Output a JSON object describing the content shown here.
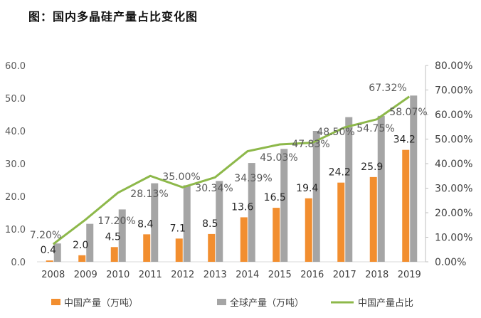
{
  "chart_data": {
    "type": "bar+line",
    "title": "图：国内多晶硅产量占比变化图",
    "categories": [
      "2008",
      "2009",
      "2010",
      "2011",
      "2012",
      "2013",
      "2014",
      "2015",
      "2016",
      "2017",
      "2018",
      "2019"
    ],
    "series": [
      {
        "name": "中国产量（万吨）",
        "type": "bar",
        "axis": "left",
        "color": "#f28e2f",
        "values": [
          0.4,
          2.0,
          4.5,
          8.4,
          7.1,
          8.5,
          13.6,
          16.5,
          19.4,
          24.2,
          25.9,
          34.2
        ],
        "labels": [
          "0.4",
          "2.0",
          "4.5",
          "8.4",
          "7.1",
          "8.5",
          "13.6",
          "16.5",
          "19.4",
          "24.2",
          "25.9",
          "34.2"
        ]
      },
      {
        "name": "全球产量（万吨）",
        "type": "bar",
        "axis": "left",
        "color": "#a5a5a5",
        "values": [
          5.6,
          11.6,
          16.0,
          24.0,
          23.4,
          24.7,
          30.2,
          34.5,
          40.0,
          44.2,
          44.6,
          50.8
        ]
      },
      {
        "name": "中国产量占比",
        "type": "line",
        "axis": "right",
        "color": "#8db84a",
        "values": [
          7.2,
          17.2,
          28.13,
          35.0,
          30.34,
          34.39,
          45.03,
          47.83,
          48.5,
          54.75,
          58.07,
          67.32
        ],
        "labels": [
          "7.20%",
          "17.20%",
          "28.13%",
          "35.00%",
          "30.34%",
          "34.39%",
          "45.03%",
          "47.83%",
          "48.50%",
          "54.75%",
          "58.07%",
          "67.32%"
        ]
      }
    ],
    "left_axis": {
      "ylim": [
        0,
        60
      ],
      "ticks": [
        "0.0",
        "10.0",
        "20.0",
        "30.0",
        "40.0",
        "50.0",
        "60.0"
      ]
    },
    "right_axis": {
      "ylim": [
        0,
        80
      ],
      "ticks": [
        "0.00%",
        "10.00%",
        "20.00%",
        "30.00%",
        "40.00%",
        "50.00%",
        "60.00%",
        "70.00%",
        "80.00%"
      ]
    },
    "grid": false,
    "legend": "bottom"
  }
}
